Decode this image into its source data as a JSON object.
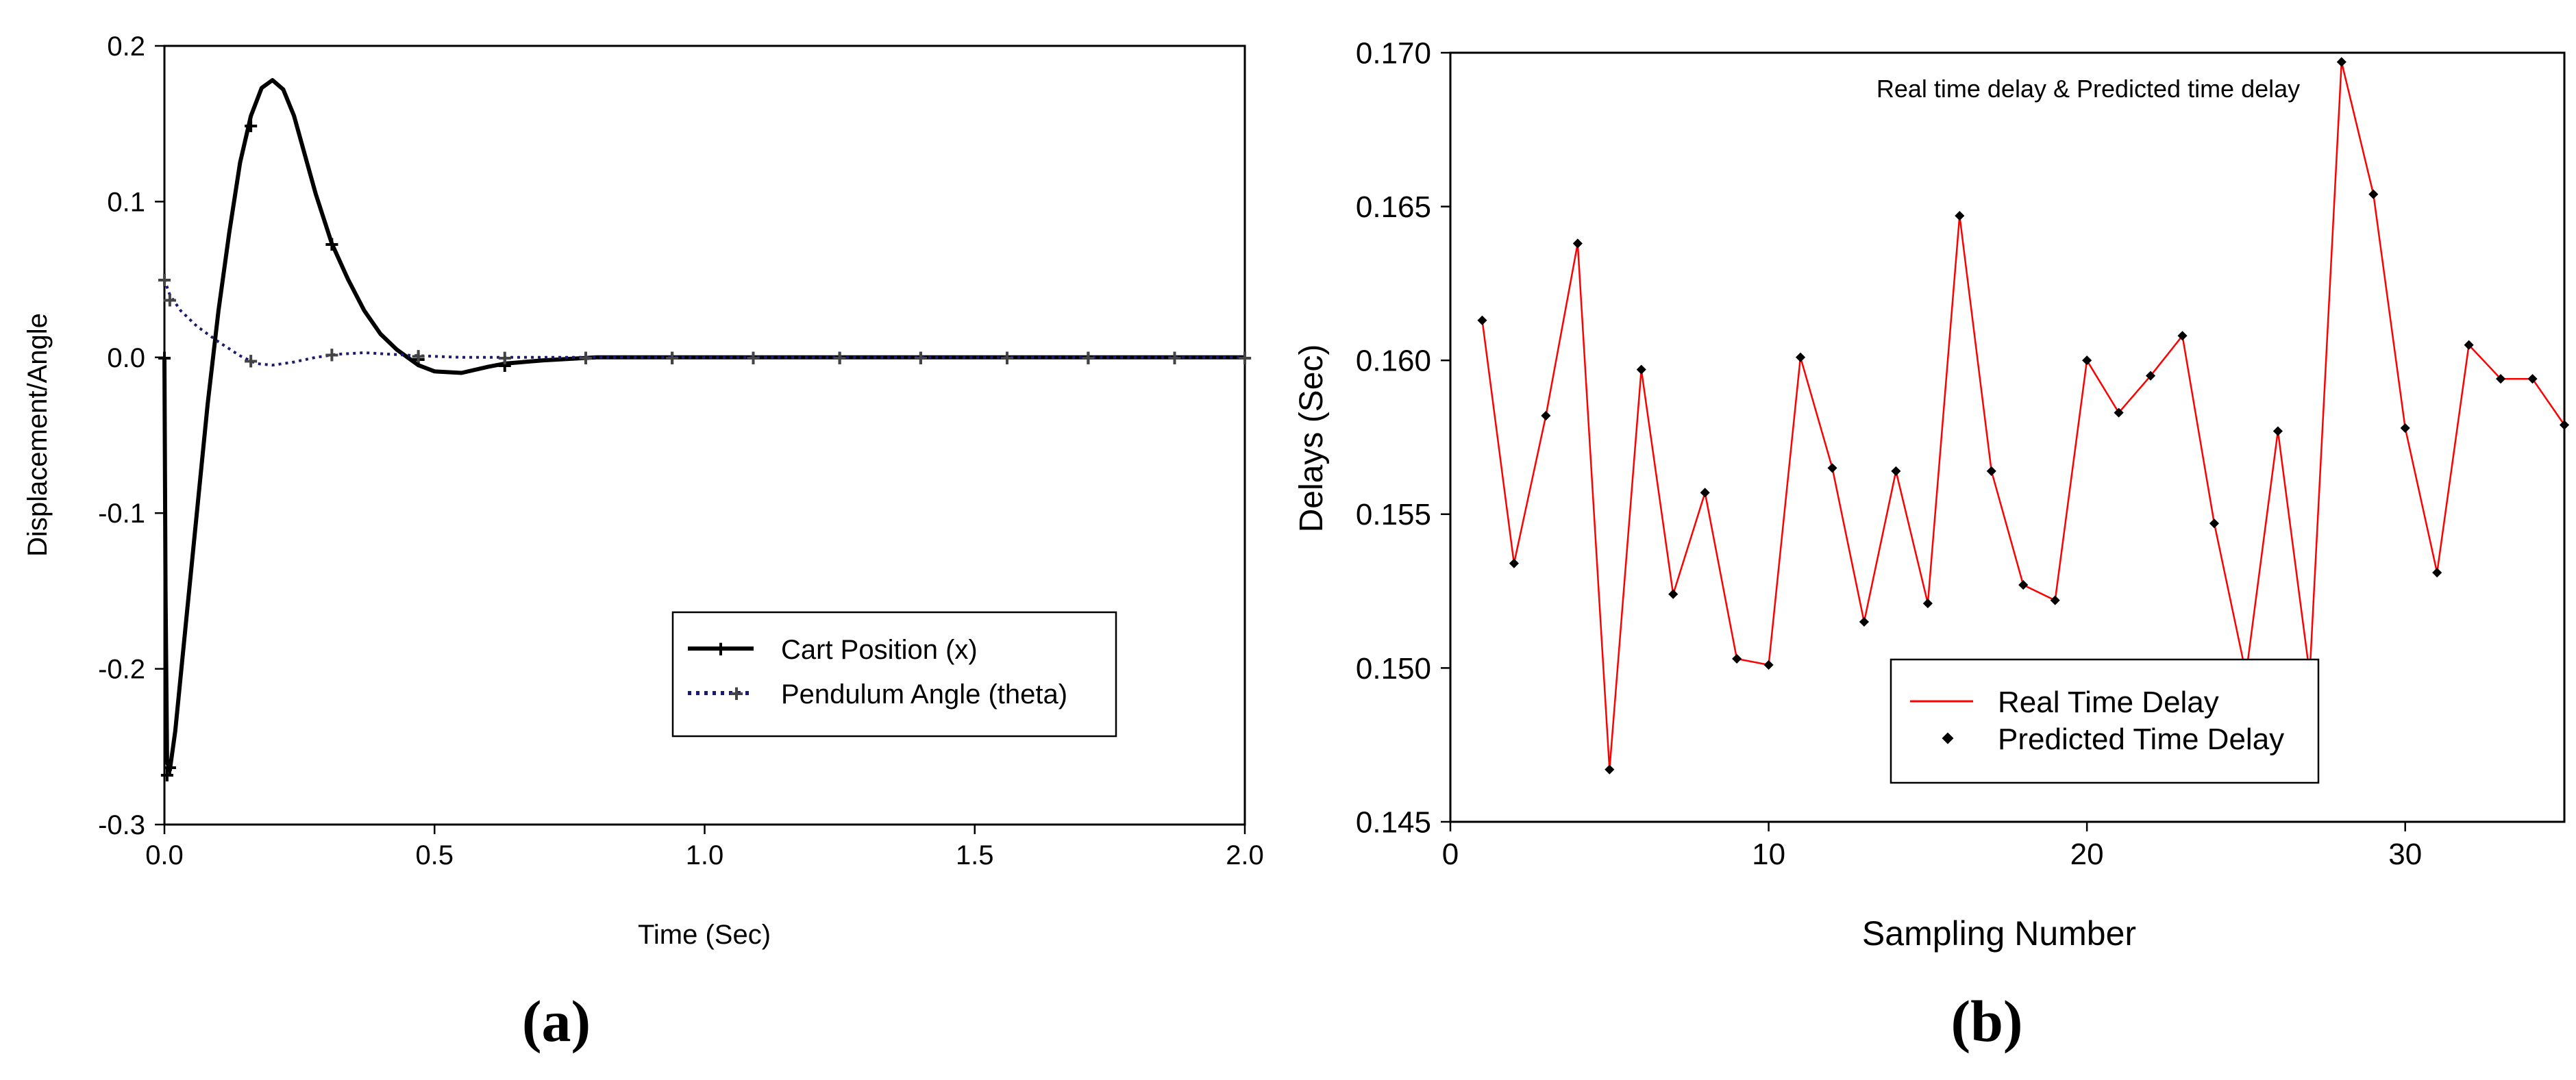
{
  "chart_data": [
    {
      "type": "line",
      "panel_label": "(a)",
      "xlabel": "Time (Sec)",
      "ylabel": "Displacement/Angle",
      "xlim": [
        0,
        2
      ],
      "ylim": [
        -0.3,
        0.2
      ],
      "x_ticks": [
        "0.0",
        "0.5",
        "1.0",
        "1.5",
        "2.0"
      ],
      "x_tick_values": [
        0,
        0.5,
        1.0,
        1.5,
        2.0
      ],
      "y_ticks": [
        "-0.3",
        "-0.2",
        "-0.1",
        "0.0",
        "0.1",
        "0.2"
      ],
      "y_tick_values": [
        -0.3,
        -0.2,
        -0.1,
        0.0,
        0.1,
        0.2
      ],
      "grid": false,
      "legend_position": "lower-right",
      "series": [
        {
          "name": "Cart Position (x)",
          "style": "solid",
          "color": "#000000",
          "x": [
            0,
            0.002,
            0.005,
            0.01,
            0.02,
            0.04,
            0.06,
            0.08,
            0.1,
            0.12,
            0.14,
            0.16,
            0.18,
            0.2,
            0.22,
            0.24,
            0.26,
            0.28,
            0.31,
            0.34,
            0.37,
            0.4,
            0.43,
            0.47,
            0.5,
            0.55,
            0.6,
            0.63,
            0.7,
            0.8,
            0.9,
            1.0,
            1.2,
            1.4,
            1.6,
            1.8,
            2.0
          ],
          "y": [
            0.0,
            -0.15,
            -0.26,
            -0.265,
            -0.24,
            -0.17,
            -0.1,
            -0.03,
            0.03,
            0.08,
            0.125,
            0.155,
            0.173,
            0.178,
            0.172,
            0.155,
            0.13,
            0.105,
            0.073,
            0.05,
            0.03,
            0.015,
            0.005,
            -0.005,
            -0.009,
            -0.01,
            -0.006,
            -0.004,
            -0.002,
            0.0,
            0.0,
            0.0,
            0.0,
            0.0,
            0.0,
            0.0,
            0.0
          ],
          "marker_x": [
            0.0,
            0.005,
            0.01,
            0.16,
            0.31,
            0.47,
            0.63,
            0.78,
            0.94,
            1.09,
            1.25,
            1.4,
            1.56,
            1.71,
            1.87,
            2.0
          ],
          "marker_y": [
            0.0,
            -0.268,
            -0.263,
            0.149,
            0.073,
            -0.001,
            -0.005,
            0.0,
            0.0,
            0.0,
            0.0,
            0.0,
            0.0,
            0.0,
            0.0,
            0.0
          ]
        },
        {
          "name": "Pendulum Angle (theta)",
          "style": "dotted",
          "color": "#1a1a6e",
          "x": [
            0,
            0.01,
            0.03,
            0.06,
            0.1,
            0.14,
            0.17,
            0.2,
            0.24,
            0.28,
            0.32,
            0.37,
            0.42,
            0.47,
            0.55,
            0.63,
            0.7,
            0.8,
            1.0,
            1.2,
            1.4,
            1.6,
            1.8,
            2.0
          ],
          "y": [
            0.05,
            0.04,
            0.03,
            0.02,
            0.01,
            0.001,
            -0.004,
            -0.005,
            -0.003,
            0.0,
            0.002,
            0.003,
            0.002,
            0.001,
            0.0,
            0.0,
            0.0,
            0.0,
            0.0,
            0.0,
            0.0,
            0.0,
            0.0,
            0.0
          ],
          "marker_x": [
            0.0,
            0.01,
            0.16,
            0.31,
            0.47,
            0.63,
            0.78,
            0.94,
            1.09,
            1.25,
            1.4,
            1.56,
            1.71,
            1.87,
            2.0
          ],
          "marker_y": [
            0.05,
            0.037,
            -0.002,
            0.002,
            0.001,
            0.0,
            0.0,
            0.0,
            0.0,
            0.0,
            0.0,
            0.0,
            0.0,
            0.0,
            0.0
          ]
        }
      ]
    },
    {
      "type": "line",
      "panel_label": "(b)",
      "title": "Real time delay & Predicted time delay",
      "xlabel": "Sampling Number",
      "ylabel": "Delays (Sec)",
      "xlim": [
        0,
        35
      ],
      "ylim": [
        0.145,
        0.17
      ],
      "x_ticks": [
        "0",
        "10",
        "20",
        "30"
      ],
      "x_tick_values": [
        0,
        10,
        20,
        30
      ],
      "y_ticks": [
        "0.145",
        "0.150",
        "0.155",
        "0.160",
        "0.165",
        "0.170"
      ],
      "y_tick_values": [
        0.145,
        0.15,
        0.155,
        0.16,
        0.165,
        0.17
      ],
      "grid": false,
      "legend_position": "bottom-center",
      "series": [
        {
          "name": "Real Time Delay",
          "style": "solid",
          "color": "#ff0000",
          "x": [
            1,
            2,
            3,
            4,
            5,
            6,
            7,
            8,
            9,
            10,
            11,
            12,
            13,
            14,
            15,
            16,
            17,
            18,
            19,
            20,
            21,
            22,
            23,
            24,
            25,
            26,
            27,
            28,
            29,
            30,
            31,
            32,
            33,
            34,
            35
          ],
          "y": [
            0.1613,
            0.1534,
            0.1582,
            0.1638,
            0.1467,
            0.1597,
            0.1524,
            0.1557,
            0.1503,
            0.1501,
            0.1601,
            0.1565,
            0.1515,
            0.1564,
            0.1521,
            0.1647,
            0.1564,
            0.1527,
            0.1522,
            0.16,
            0.1583,
            0.1595,
            0.1608,
            0.1547,
            0.1498,
            0.1577,
            0.1498,
            0.1697,
            0.1654,
            0.1578,
            0.1531,
            0.1605,
            0.1594,
            0.1594,
            0.1579
          ]
        },
        {
          "name": "Predicted Time Delay",
          "style": "markers",
          "color": "#000000",
          "x": [
            1,
            2,
            3,
            4,
            5,
            6,
            7,
            8,
            9,
            10,
            11,
            12,
            13,
            14,
            15,
            16,
            17,
            18,
            19,
            20,
            21,
            22,
            23,
            24,
            26,
            28,
            29,
            30,
            31,
            32,
            33,
            34,
            35
          ],
          "y": [
            0.1613,
            0.1534,
            0.1582,
            0.1638,
            0.1467,
            0.1597,
            0.1524,
            0.1557,
            0.1503,
            0.1501,
            0.1601,
            0.1565,
            0.1515,
            0.1564,
            0.1521,
            0.1647,
            0.1564,
            0.1527,
            0.1522,
            0.16,
            0.1583,
            0.1595,
            0.1608,
            0.1547,
            0.1577,
            0.1697,
            0.1654,
            0.1578,
            0.1531,
            0.1605,
            0.1594,
            0.1594,
            0.1579
          ]
        }
      ]
    }
  ]
}
